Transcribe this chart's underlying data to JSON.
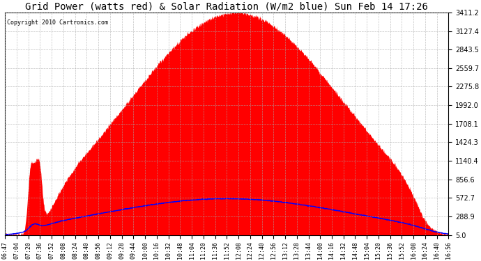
{
  "title": "Grid Power (watts red) & Solar Radiation (W/m2 blue) Sun Feb 14 17:26",
  "copyright": "Copyright 2010 Cartronics.com",
  "bg_color": "#ffffff",
  "plot_bg_color": "#ffffff",
  "grid_color": "#aaaaaa",
  "yticks": [
    5.0,
    288.9,
    572.7,
    856.6,
    1140.4,
    1424.3,
    1708.1,
    1992.0,
    2275.8,
    2559.7,
    2843.5,
    3127.4,
    3411.2
  ],
  "ymin": 5.0,
  "ymax": 3411.2,
  "x_labels": [
    "06:47",
    "07:04",
    "07:20",
    "07:36",
    "07:52",
    "08:08",
    "08:24",
    "08:40",
    "08:56",
    "09:12",
    "09:28",
    "09:44",
    "10:00",
    "10:16",
    "10:32",
    "10:48",
    "11:04",
    "11:20",
    "11:36",
    "11:52",
    "12:08",
    "12:24",
    "12:40",
    "12:56",
    "13:12",
    "13:28",
    "13:44",
    "14:00",
    "14:16",
    "14:32",
    "14:48",
    "15:04",
    "15:20",
    "15:36",
    "15:52",
    "16:08",
    "16:24",
    "16:40",
    "16:56"
  ],
  "red_fill_color": "#ff0000",
  "blue_line_color": "#0000ff",
  "title_fontsize": 10,
  "copyright_fontsize": 6,
  "tick_fontsize": 6,
  "ytick_fontsize": 7
}
